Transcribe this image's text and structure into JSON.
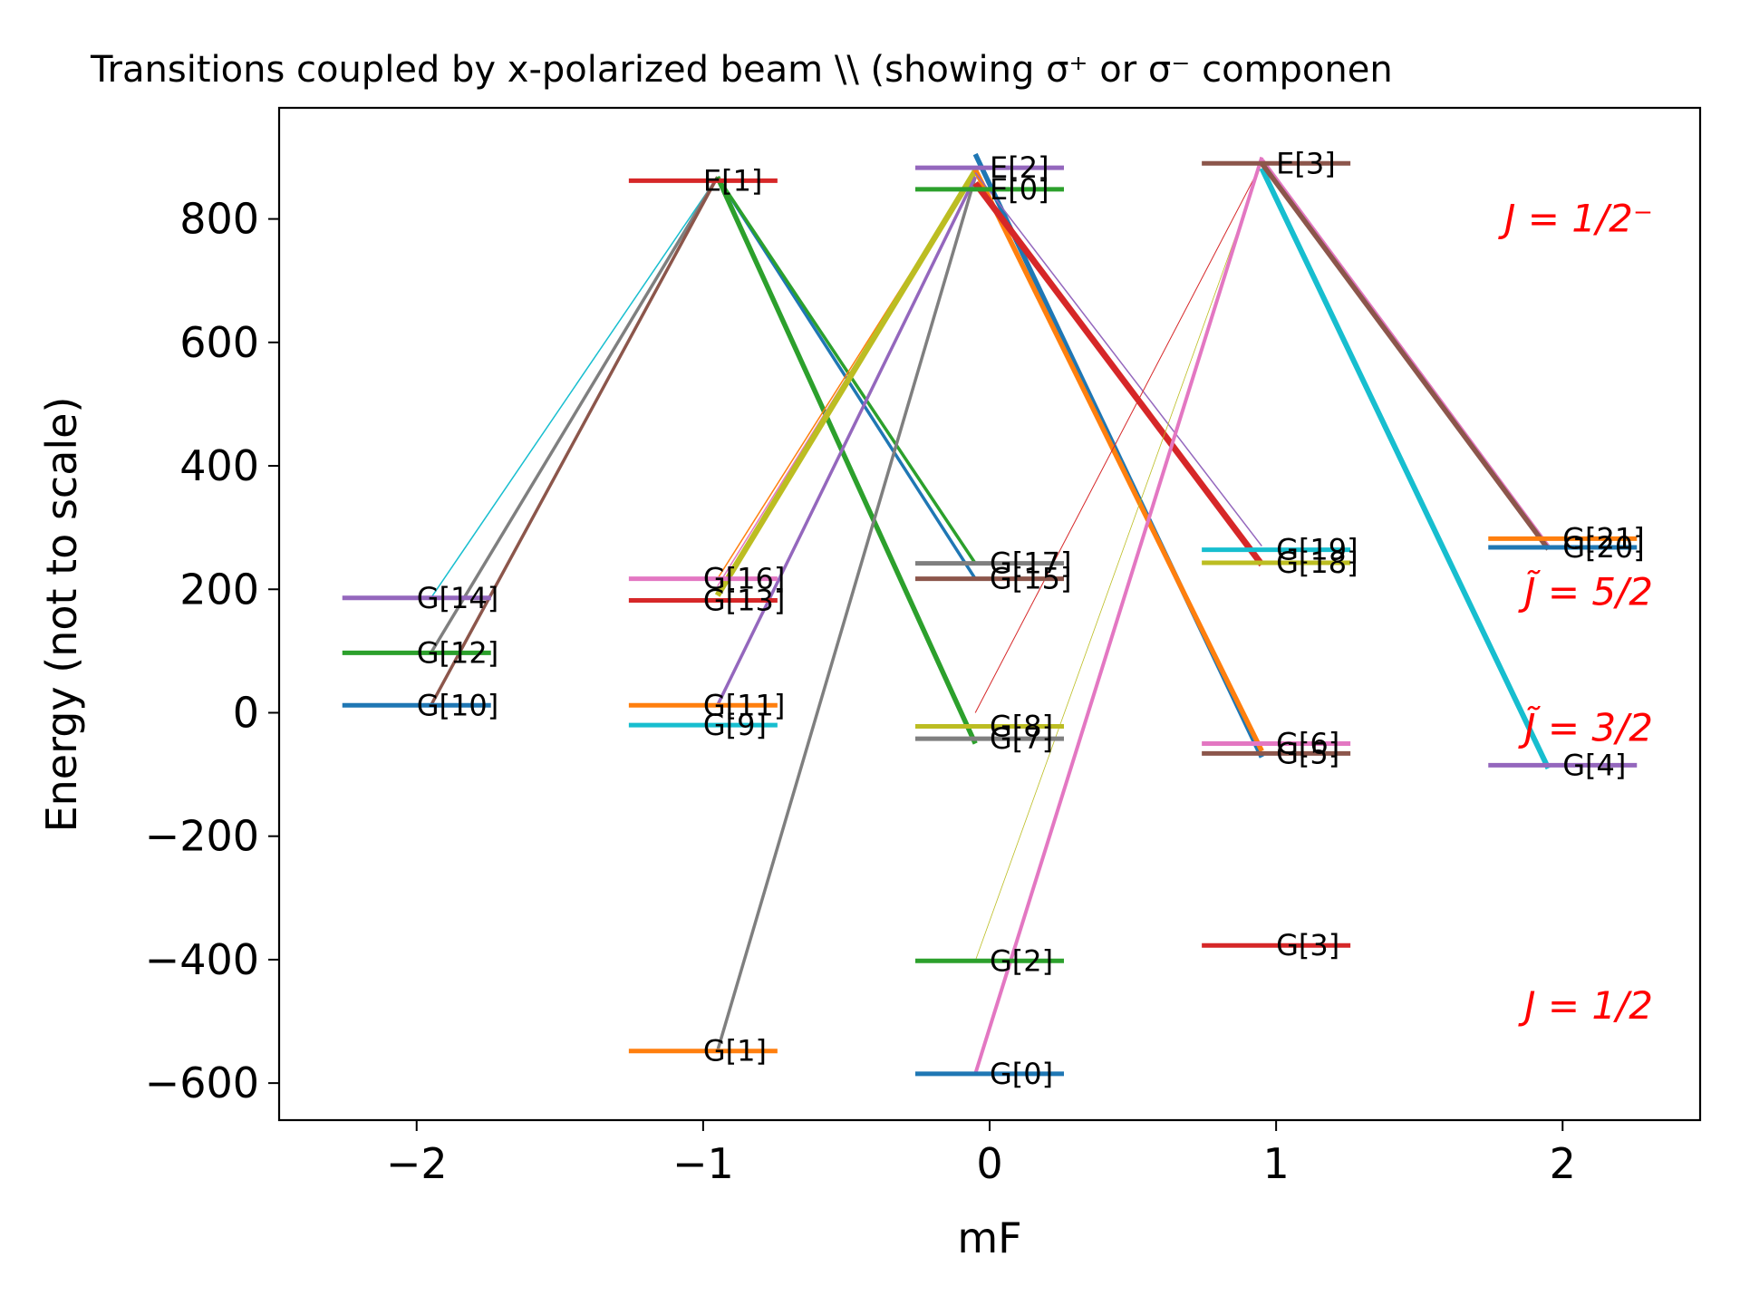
{
  "chart_data": {
    "type": "line",
    "title": "Transitions coupled by x-polarized beam \\\\ (showing σ⁺ or σ⁻ componen",
    "xlabel": "mF",
    "ylabel": "Energy (not to scale)",
    "xlim": [
      -2.48,
      2.48
    ],
    "ylim": [
      -660,
      980
    ],
    "x_ticks": [
      -2,
      -1,
      0,
      1,
      2
    ],
    "x_tick_labels": [
      "−2",
      "−1",
      "0",
      "1",
      "2"
    ],
    "y_ticks": [
      -600,
      -400,
      -200,
      0,
      200,
      400,
      600,
      800
    ],
    "y_tick_labels": [
      "−600",
      "−400",
      "−200",
      "0",
      "200",
      "400",
      "600",
      "800"
    ],
    "grid": false,
    "region_labels": [
      {
        "text": "J = 1/2⁻",
        "y": 800
      },
      {
        "text": "J̃ = 5/2",
        "y": 195
      },
      {
        "text": "J̃ = 3/2",
        "y": -25
      },
      {
        "text": "J = 1/2",
        "y": -475
      }
    ],
    "levels": [
      {
        "name": "G[0]",
        "mF": 0,
        "energy": -585,
        "color": "#1f77b4"
      },
      {
        "name": "G[1]",
        "mF": -1,
        "energy": -548,
        "color": "#ff7f0e"
      },
      {
        "name": "G[2]",
        "mF": 0,
        "energy": -402,
        "color": "#2ca02c"
      },
      {
        "name": "G[3]",
        "mF": 1,
        "energy": -377,
        "color": "#d62728"
      },
      {
        "name": "G[4]",
        "mF": 2,
        "energy": -85,
        "color": "#9467bd"
      },
      {
        "name": "G[5]",
        "mF": 1,
        "energy": -66,
        "color": "#8c564b"
      },
      {
        "name": "G[6]",
        "mF": 1,
        "energy": -50,
        "color": "#e377c2"
      },
      {
        "name": "G[7]",
        "mF": 0,
        "energy": -42,
        "color": "#7f7f7f"
      },
      {
        "name": "G[8]",
        "mF": 0,
        "energy": -22,
        "color": "#bcbd22"
      },
      {
        "name": "G[9]",
        "mF": -1,
        "energy": -20,
        "color": "#17becf"
      },
      {
        "name": "G[10]",
        "mF": -2,
        "energy": 12,
        "color": "#1f77b4"
      },
      {
        "name": "G[11]",
        "mF": -1,
        "energy": 12,
        "color": "#ff7f0e"
      },
      {
        "name": "G[12]",
        "mF": -2,
        "energy": 97,
        "color": "#2ca02c"
      },
      {
        "name": "G[13]",
        "mF": -1,
        "energy": 182,
        "color": "#d62728"
      },
      {
        "name": "G[14]",
        "mF": -2,
        "energy": 186,
        "color": "#9467bd"
      },
      {
        "name": "G[15]",
        "mF": 0,
        "energy": 217,
        "color": "#8c564b"
      },
      {
        "name": "G[16]",
        "mF": -1,
        "energy": 217,
        "color": "#e377c2"
      },
      {
        "name": "G[17]",
        "mF": 0,
        "energy": 242,
        "color": "#7f7f7f"
      },
      {
        "name": "G[18]",
        "mF": 1,
        "energy": 243,
        "color": "#bcbd22"
      },
      {
        "name": "G[19]",
        "mF": 1,
        "energy": 264,
        "color": "#17becf"
      },
      {
        "name": "G[20]",
        "mF": 2,
        "energy": 268,
        "color": "#1f77b4"
      },
      {
        "name": "G[21]",
        "mF": 2,
        "energy": 282,
        "color": "#ff7f0e"
      },
      {
        "name": "E[0]",
        "mF": 0,
        "energy": 848,
        "color": "#2ca02c"
      },
      {
        "name": "E[1]",
        "mF": -1,
        "energy": 862,
        "color": "#d62728"
      },
      {
        "name": "E[2]",
        "mF": 0,
        "energy": 883,
        "color": "#9467bd"
      },
      {
        "name": "E[3]",
        "mF": 1,
        "energy": 890,
        "color": "#8c564b"
      }
    ],
    "transitions": [
      {
        "from": [
          -1.95,
          186
        ],
        "to": [
          -0.95,
          868
        ],
        "color": "#17becf",
        "width": 1.5
      },
      {
        "from": [
          -1.95,
          97
        ],
        "to": [
          -0.95,
          868
        ],
        "color": "#7f7f7f",
        "width": 3.5
      },
      {
        "from": [
          -1.95,
          12
        ],
        "to": [
          -0.95,
          868
        ],
        "color": "#8c564b",
        "width": 3.5
      },
      {
        "from": [
          -0.95,
          868
        ],
        "to": [
          -0.05,
          217
        ],
        "color": "#1f77b4",
        "width": 3.5
      },
      {
        "from": [
          -0.95,
          868
        ],
        "to": [
          -0.05,
          242
        ],
        "color": "#2ca02c",
        "width": 3.5
      },
      {
        "from": [
          -0.95,
          868
        ],
        "to": [
          -0.05,
          -50
        ],
        "color": "#2ca02c",
        "width": 5.5
      },
      {
        "from": [
          -0.95,
          -548
        ],
        "to": [
          -0.05,
          868
        ],
        "color": "#7f7f7f",
        "width": 3.5
      },
      {
        "from": [
          -0.95,
          217
        ],
        "to": [
          -0.05,
          878
        ],
        "color": "#ff7f0e",
        "width": 1.5
      },
      {
        "from": [
          -0.95,
          205
        ],
        "to": [
          -0.05,
          878
        ],
        "color": "#e377c2",
        "width": 1.5
      },
      {
        "from": [
          -0.95,
          190
        ],
        "to": [
          -0.05,
          878
        ],
        "color": "#bcbd22",
        "width": 6.5
      },
      {
        "from": [
          -0.95,
          12
        ],
        "to": [
          -0.05,
          868
        ],
        "color": "#9467bd",
        "width": 3.5
      },
      {
        "from": [
          -0.05,
          905
        ],
        "to": [
          0.95,
          -72
        ],
        "color": "#1f77b4",
        "width": 5.5
      },
      {
        "from": [
          -0.05,
          880
        ],
        "to": [
          0.95,
          -62
        ],
        "color": "#ff7f0e",
        "width": 5.5
      },
      {
        "from": [
          -0.05,
          858
        ],
        "to": [
          0.95,
          240
        ],
        "color": "#d62728",
        "width": 7
      },
      {
        "from": [
          -0.05,
          875
        ],
        "to": [
          0.95,
          270
        ],
        "color": "#9467bd",
        "width": 1.5
      },
      {
        "from": [
          -0.05,
          0
        ],
        "to": [
          0.95,
          890
        ],
        "color": "#d62728",
        "width": 1
      },
      {
        "from": [
          -0.05,
          -402
        ],
        "to": [
          0.95,
          890
        ],
        "color": "#bcbd22",
        "width": 0.8
      },
      {
        "from": [
          -0.05,
          -585
        ],
        "to": [
          0.95,
          900
        ],
        "color": "#e377c2",
        "width": 4
      },
      {
        "from": [
          0.95,
          882
        ],
        "to": [
          1.95,
          -90
        ],
        "color": "#17becf",
        "width": 6
      },
      {
        "from": [
          0.95,
          895
        ],
        "to": [
          1.95,
          268
        ],
        "color": "#e377c2",
        "width": 5.5
      },
      {
        "from": [
          0.95,
          890
        ],
        "to": [
          1.95,
          265
        ],
        "color": "#8c564b",
        "width": 5.5
      }
    ]
  }
}
